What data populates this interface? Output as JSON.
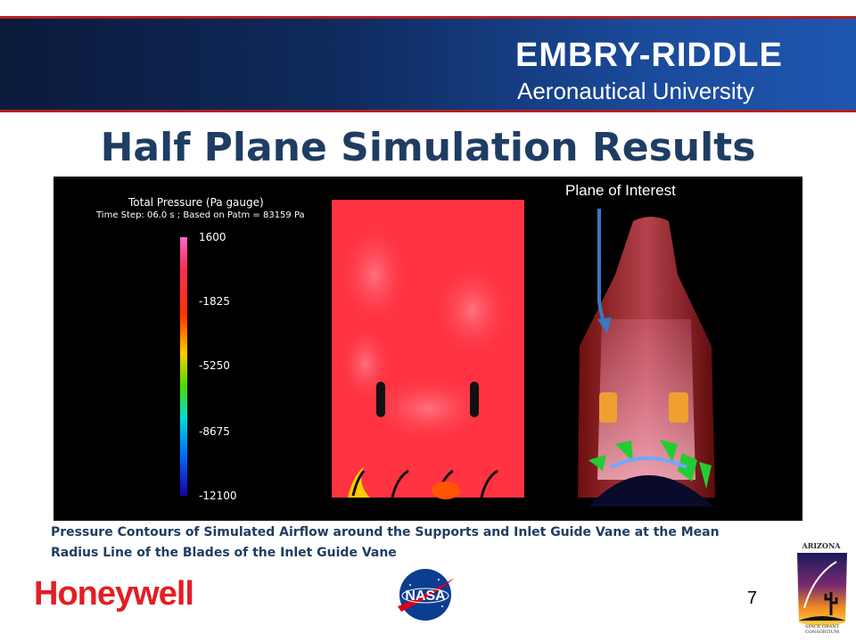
{
  "header": {
    "brand_line1": "EMBRY-RIDDLE",
    "brand_line2": "Aeronautical University"
  },
  "slide": {
    "title": "Half Plane Simulation Results",
    "page_number": "7"
  },
  "figure": {
    "plane_label": "Plane of Interest",
    "legend": {
      "title": "Total Pressure (Pa gauge)",
      "subtitle": "Time Step: 06.0 s ; Based on Patm = 83159 Pa",
      "ticks": [
        "1600",
        "-1825",
        "-5250",
        "-8675",
        "-12100"
      ]
    }
  },
  "caption": {
    "line1": "Pressure Contours of Simulated Airflow around the Supports and Inlet Guide Vane at the Mean",
    "line2": "Radius Line of the Blades of the Inlet Guide Vane"
  },
  "logos": {
    "honeywell": "Honeywell",
    "nasa": "NASA",
    "asgc_top": "ARIZONA",
    "asgc_bottom": "SPACE GRANT CONSORTIUM"
  },
  "colors": {
    "title": "#1f3d63",
    "banner_stripe": "#b12020",
    "honeywell_red": "#e31e24",
    "nasa_blue": "#0b3d91"
  }
}
